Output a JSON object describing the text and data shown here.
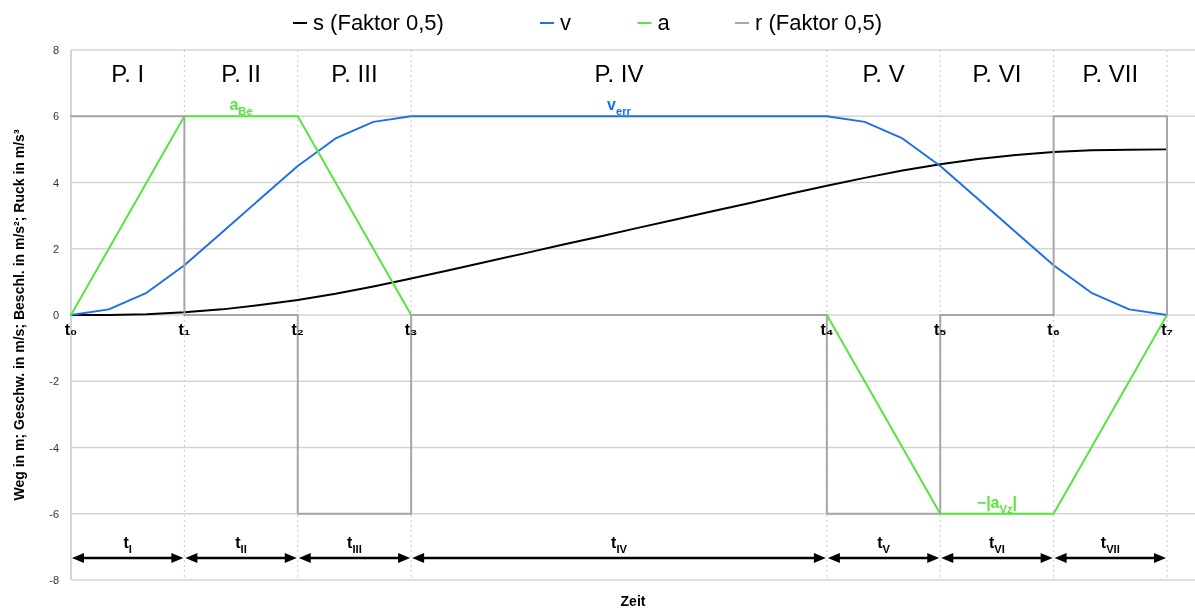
{
  "chart_data": {
    "type": "line",
    "xlabel": "Zeit",
    "ylabel": "Weg in m; Geschw. in m/s; Beschl. in m/s²; Ruck in m/s³",
    "categories": [
      "t₀",
      null,
      null,
      "t₁",
      null,
      null,
      "t₂",
      null,
      null,
      "t₃",
      null,
      null,
      null,
      null,
      null,
      null,
      null,
      null,
      null,
      null,
      "t₄",
      null,
      null,
      "t₅",
      null,
      null,
      "t₆",
      null,
      null,
      "t₇"
    ],
    "ylim": [
      -8,
      8
    ],
    "yticks": [
      -8,
      -6,
      -4,
      -2,
      0,
      2,
      4,
      6,
      8
    ],
    "grid": true,
    "legend": "top",
    "line_style": "solid",
    "marker": "none",
    "series": [
      {
        "name": "s (Faktor 0,5)",
        "color": "#000000",
        "values": [
          0,
          0,
          0.02,
          0.08,
          0.17,
          0.3,
          0.45,
          0.64,
          0.86,
          1.1,
          1.35,
          1.61,
          1.86,
          2.12,
          2.37,
          2.63,
          2.88,
          3.14,
          3.39,
          3.65,
          3.9,
          4.14,
          4.36,
          4.55,
          4.71,
          4.83,
          4.92,
          4.97,
          4.99,
          5
        ]
      },
      {
        "name": "v",
        "color": "#1f6fe8",
        "values": [
          0,
          0.17,
          0.67,
          1.5,
          2.5,
          3.5,
          4.5,
          5.33,
          5.83,
          6,
          6,
          6,
          6,
          6,
          6,
          6,
          6,
          6,
          6,
          6,
          6,
          5.83,
          5.33,
          4.5,
          3.5,
          2.5,
          1.5,
          0.67,
          0.17,
          0
        ]
      },
      {
        "name": "a",
        "color": "#55e63c",
        "values": [
          0,
          2,
          4,
          6,
          6,
          6,
          6,
          4,
          2,
          0,
          0,
          0,
          0,
          0,
          0,
          0,
          0,
          0,
          0,
          0,
          0,
          -2,
          -4,
          -6,
          -6,
          -6,
          -6,
          -4,
          -2,
          0
        ]
      },
      {
        "name": "r (Faktor 0,5)",
        "type": "step",
        "color": "#a6a6a6",
        "values": [
          6,
          6,
          6,
          0,
          0,
          0,
          -6,
          -6,
          -6,
          0,
          0,
          0,
          0,
          0,
          0,
          0,
          0,
          0,
          0,
          0,
          -6,
          -6,
          -6,
          0,
          0,
          0,
          6,
          6,
          6,
          0
        ]
      }
    ],
    "annotations": [
      "P. I",
      "P. II",
      "P. III",
      "P. IV",
      "P. V",
      "P. VI",
      "P. VII",
      "a$_{Be}$",
      "v$_{err}$",
      "−|a$_{Vz}$|",
      "t$_{I}$",
      "t$_{II}$",
      "t$_{III}$",
      "t$_{IV}$",
      "t$_{V}$",
      "t$_{VI}$",
      "t$_{VII}$"
    ]
  }
}
